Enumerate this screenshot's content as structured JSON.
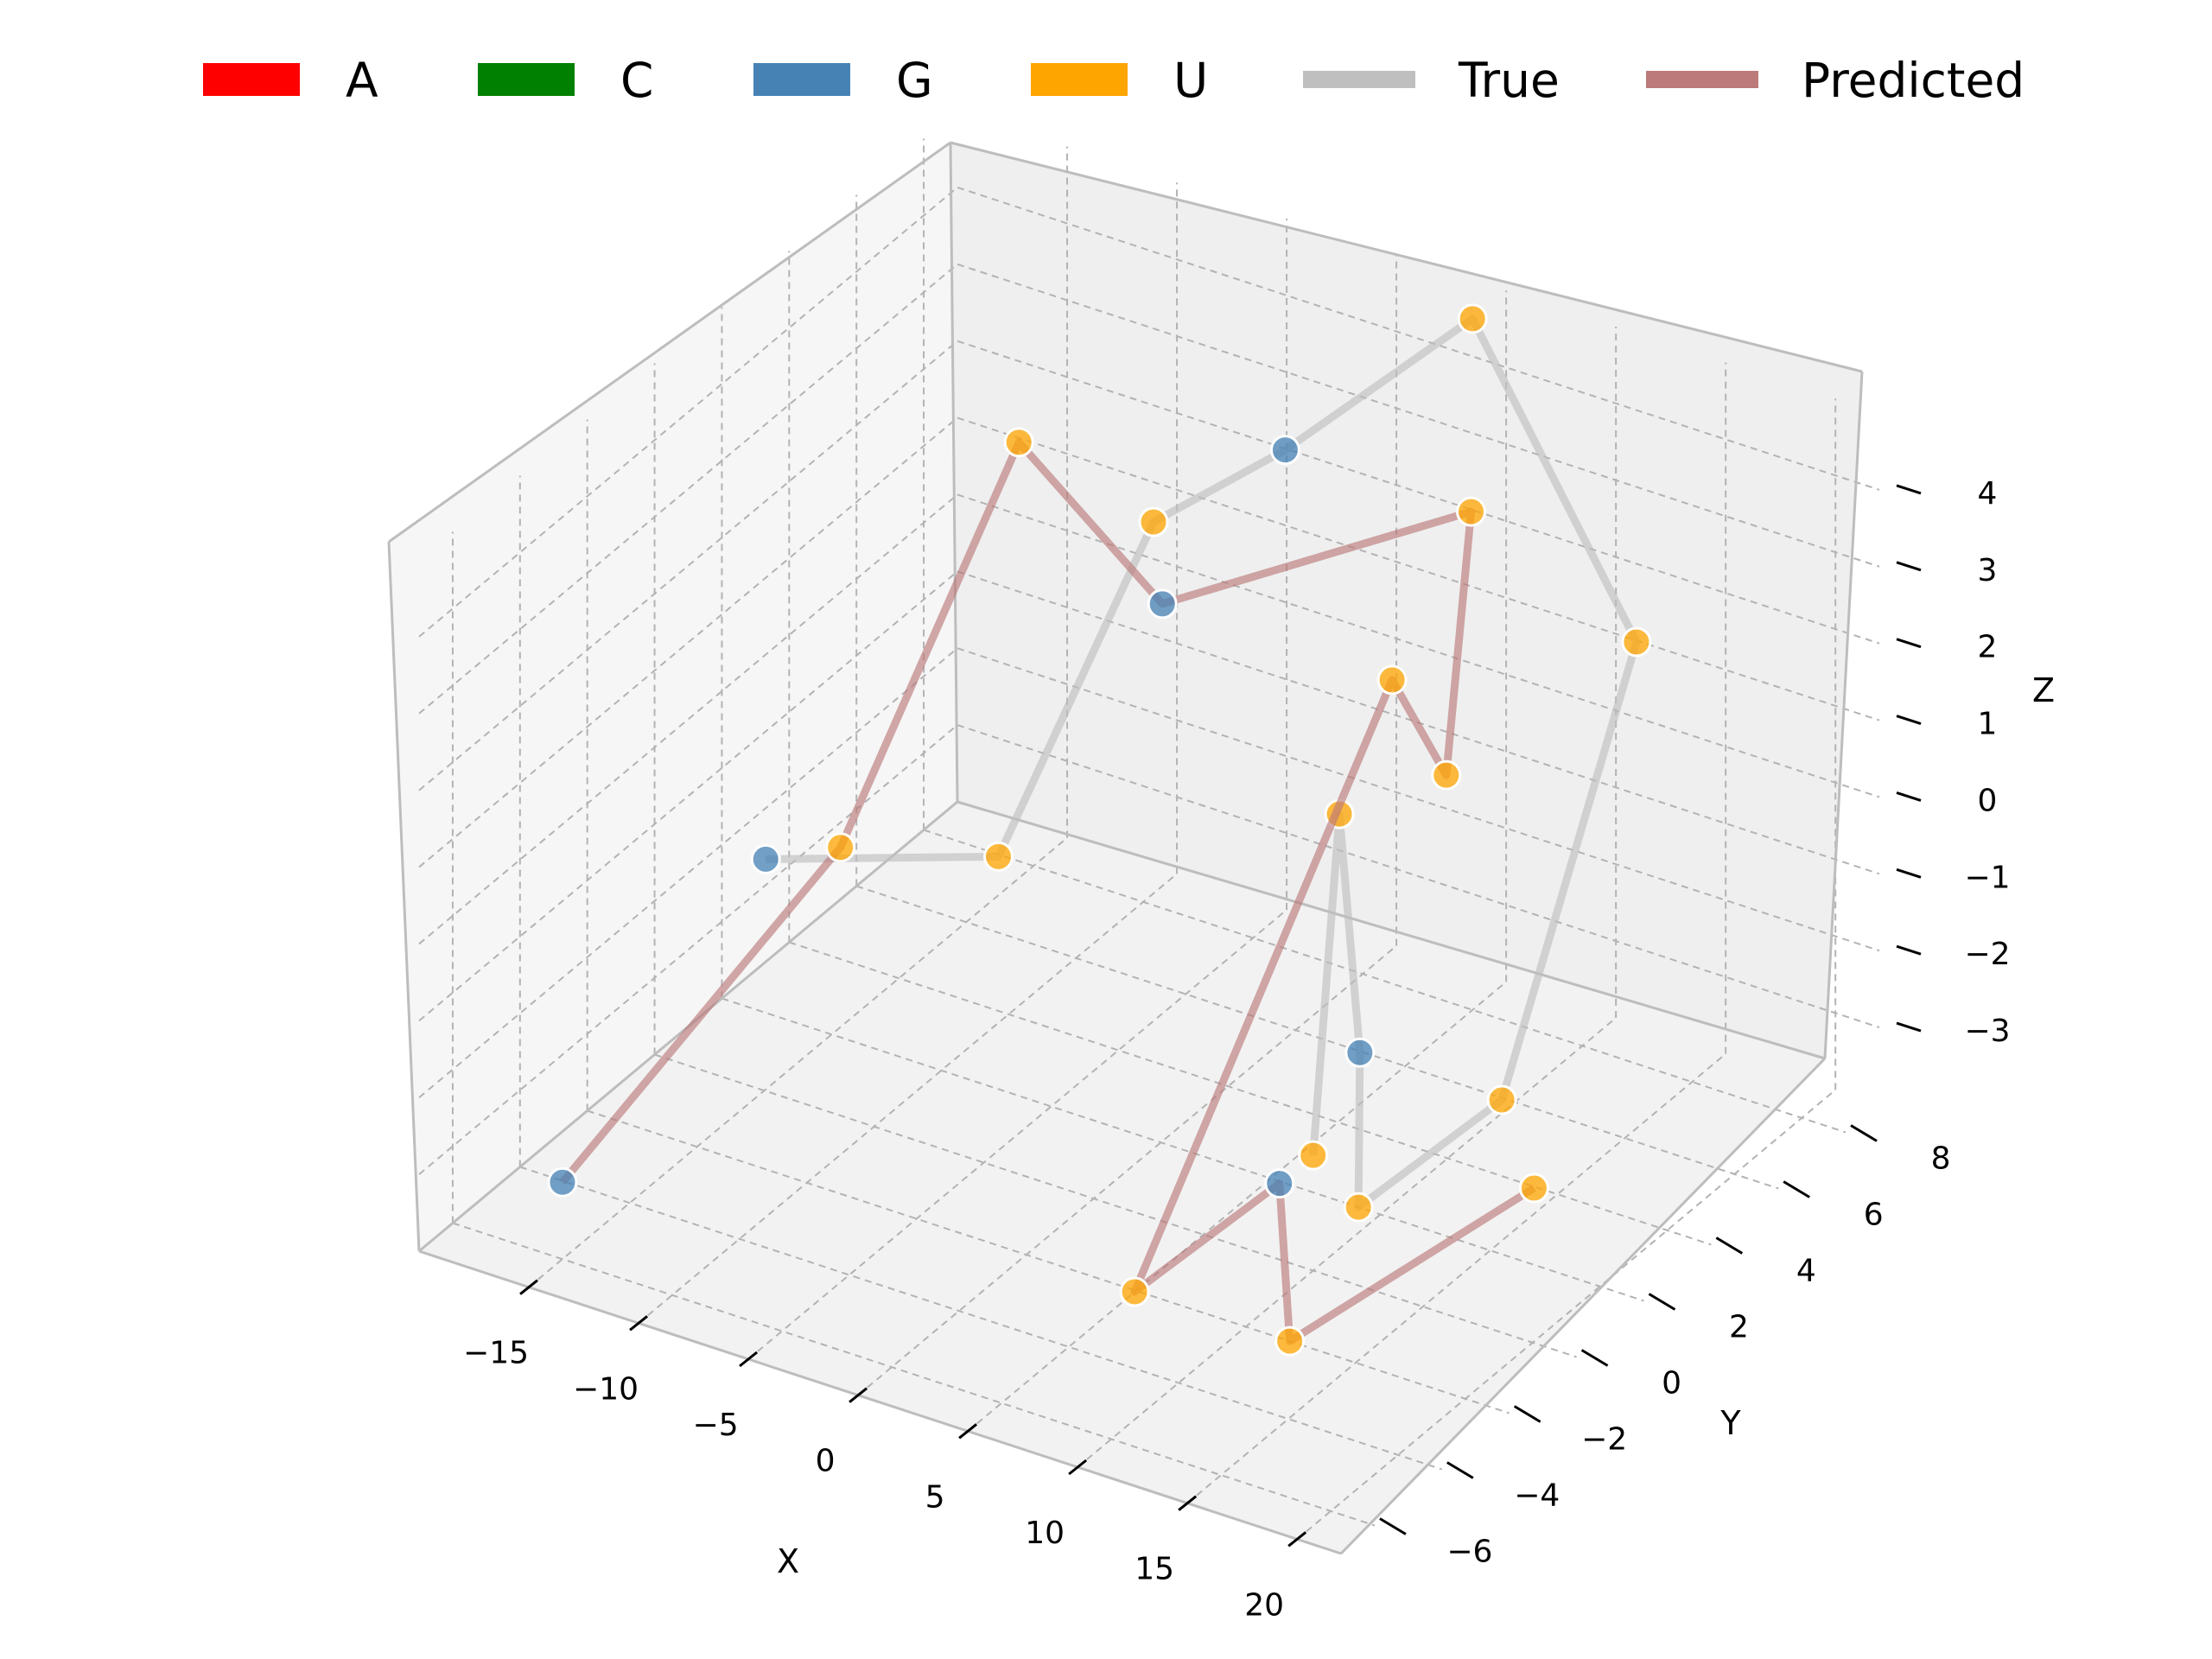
{
  "chart_data": {
    "type": "scatter3d",
    "title": "",
    "xlabel": "X",
    "ylabel": "Y",
    "zlabel": "Z",
    "x_ticks": [
      "−15",
      "−10",
      "−5",
      "0",
      "5",
      "10",
      "15",
      "20"
    ],
    "y_ticks": [
      "−6",
      "−4",
      "−2",
      "0",
      "2",
      "4",
      "6",
      "8"
    ],
    "z_ticks": [
      "−3",
      "−2",
      "−1",
      "0",
      "1",
      "2",
      "3",
      "4"
    ],
    "grid": true,
    "legend_placement": "top",
    "legend": [
      {
        "label": "A",
        "color": "#ff0000",
        "kind": "patch"
      },
      {
        "label": "C",
        "color": "#008000",
        "kind": "patch"
      },
      {
        "label": "G",
        "color": "#4682b4",
        "kind": "patch"
      },
      {
        "label": "U",
        "color": "#ffa500",
        "kind": "patch"
      },
      {
        "label": "True",
        "color": "#bfbfbf",
        "kind": "line"
      },
      {
        "label": "Predicted",
        "color": "#bc7a7a",
        "kind": "line"
      }
    ],
    "nucleotide_colors": {
      "A": "#ff0000",
      "C": "#008000",
      "G": "#4682b4",
      "U": "#ffa500"
    },
    "series": [
      {
        "name": "True",
        "color": "#bfbfbf",
        "points": [
          {
            "x": -18,
            "y": 2,
            "z": -2,
            "base": "G"
          },
          {
            "x": -12,
            "y": 5,
            "z": -2.5,
            "base": "U"
          },
          {
            "x": -8,
            "y": 7,
            "z": 1.5,
            "base": "U"
          },
          {
            "x": -2,
            "y": 7,
            "z": 3,
            "base": "G"
          },
          {
            "x": 5,
            "y": 8,
            "z": 5,
            "base": "U"
          },
          {
            "x": 14,
            "y": 7,
            "z": 2,
            "base": "U"
          },
          {
            "x": 14,
            "y": 3,
            "z": -2.5,
            "base": "U"
          },
          {
            "x": 9,
            "y": 2,
            "z": -4,
            "base": "U"
          },
          {
            "x": 6,
            "y": 4,
            "z": -3,
            "base": "G"
          },
          {
            "x": 2,
            "y": 6,
            "z": -1,
            "base": "U"
          },
          {
            "x": 10,
            "y": 0,
            "z": -2.5,
            "base": "U"
          }
        ]
      },
      {
        "name": "Predicted",
        "color": "#bc7a7a",
        "points": [
          {
            "x": -15,
            "y": -6,
            "z": -3,
            "base": "G"
          },
          {
            "x": -10,
            "y": -1,
            "z": 0,
            "base": "U"
          },
          {
            "x": -8,
            "y": 3,
            "z": 4,
            "base": "U"
          },
          {
            "x": -3,
            "y": 4,
            "z": 2,
            "base": "G"
          },
          {
            "x": 8,
            "y": 6,
            "z": 3.5,
            "base": "U"
          },
          {
            "x": 13,
            "y": 2,
            "z": 2,
            "base": "U"
          },
          {
            "x": 9,
            "y": 3,
            "z": 2.5,
            "base": "U"
          },
          {
            "x": 8,
            "y": -4,
            "z": -3,
            "base": "U"
          },
          {
            "x": 10,
            "y": -1,
            "z": -2.5,
            "base": "G"
          },
          {
            "x": 12,
            "y": -2,
            "z": -4,
            "base": "U"
          },
          {
            "x": 17,
            "y": 2,
            "z": -3,
            "base": "U"
          }
        ]
      }
    ]
  }
}
